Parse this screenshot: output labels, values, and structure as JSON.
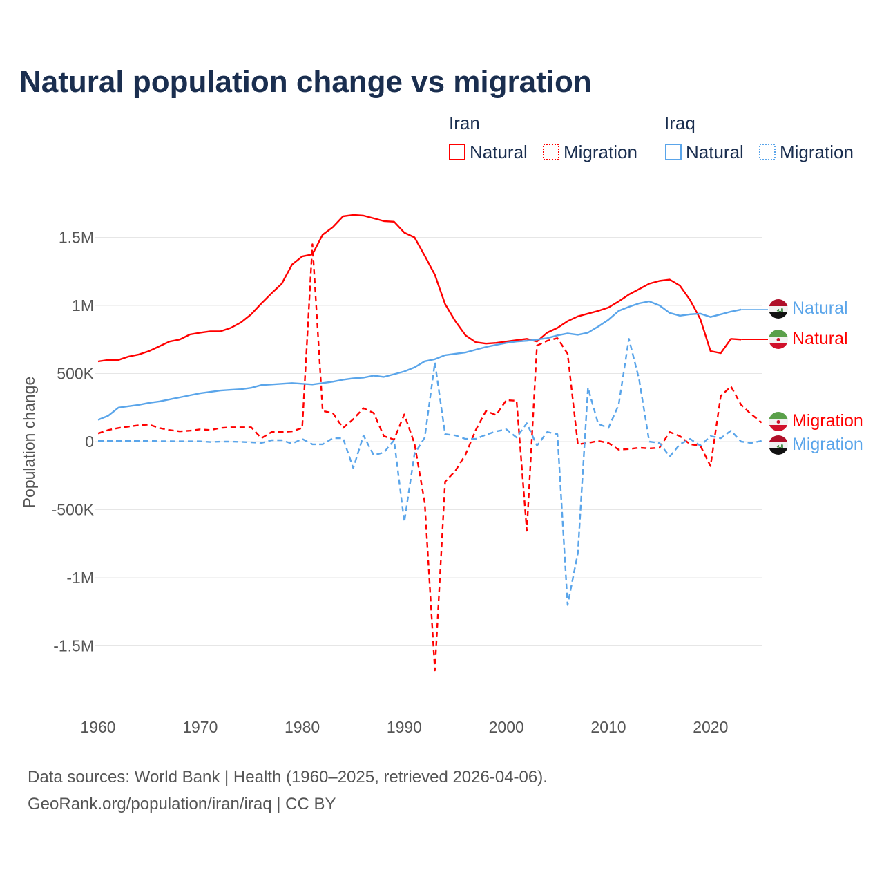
{
  "title": "Natural population change vs migration",
  "legend": {
    "groups": [
      {
        "name": "Iran",
        "items": [
          "Natural",
          "Migration"
        ]
      },
      {
        "name": "Iraq",
        "items": [
          "Natural",
          "Migration"
        ]
      }
    ]
  },
  "colors": {
    "iran": "#ff0000",
    "iraq": "#5aa5ea"
  },
  "source_line1": "Data sources: World Bank | Health (1960–2025, retrieved 2026-04-06).",
  "source_line2": "GeoRank.org/population/iran/iraq | CC BY",
  "chart_data": {
    "type": "line",
    "title": "Natural population change vs migration",
    "xlabel": "",
    "ylabel": "Population change",
    "xlim": [
      1960,
      2025
    ],
    "ylim": [
      -1700000,
      1700000
    ],
    "x_ticks": [
      1960,
      1970,
      1980,
      1990,
      2000,
      2010,
      2020
    ],
    "x_tick_labels": [
      "1960",
      "1970",
      "1980",
      "1990",
      "2000",
      "2010",
      "2020"
    ],
    "y_ticks": [
      1500000,
      1000000,
      500000,
      0,
      -500000,
      -1000000,
      -1500000
    ],
    "y_tick_labels": [
      "1.5M",
      "1M",
      "500K",
      "0",
      "-500K",
      "-1M",
      "-1.5M"
    ],
    "grid": true,
    "legend_position": "top-right",
    "start_year": 1960,
    "series": [
      {
        "name": "Iran Natural",
        "country": "Iran",
        "kind": "Natural",
        "style": "solid",
        "unit": "thousands",
        "values": [
          589,
          600,
          600,
          625,
          640,
          665,
          700,
          735,
          750,
          787,
          800,
          810,
          810,
          835,
          875,
          935,
          1015,
          1090,
          1160,
          1300,
          1360,
          1375,
          1520,
          1575,
          1655,
          1665,
          1660,
          1640,
          1620,
          1615,
          1535,
          1500,
          1365,
          1225,
          1010,
          885,
          780,
          730,
          720,
          725,
          735,
          745,
          755,
          735,
          800,
          835,
          885,
          920,
          940,
          960,
          985,
          1030,
          1080,
          1120,
          1160,
          1180,
          1190,
          1145,
          1040,
          900,
          665,
          650,
          755,
          750
        ]
      },
      {
        "name": "Iran Migration",
        "country": "Iran",
        "kind": "Migration",
        "style": "dashed",
        "unit": "thousands",
        "values": [
          60,
          85,
          100,
          110,
          120,
          125,
          100,
          85,
          75,
          80,
          90,
          85,
          100,
          105,
          105,
          105,
          25,
          70,
          70,
          75,
          100,
          1450,
          225,
          210,
          100,
          165,
          245,
          210,
          40,
          15,
          200,
          -15,
          -450,
          -1680,
          -295,
          -215,
          -95,
          85,
          225,
          195,
          305,
          300,
          -655,
          705,
          740,
          760,
          645,
          -20,
          -10,
          5,
          -10,
          -60,
          -55,
          -45,
          -50,
          -45,
          70,
          40,
          -20,
          -30,
          -180,
          335,
          405,
          270,
          200,
          140
        ]
      },
      {
        "name": "Iraq Natural",
        "country": "Iraq",
        "kind": "Natural",
        "style": "solid",
        "unit": "thousands",
        "values": [
          160,
          190,
          250,
          260,
          270,
          285,
          295,
          310,
          325,
          340,
          355,
          365,
          375,
          380,
          385,
          395,
          415,
          420,
          425,
          430,
          425,
          420,
          430,
          440,
          455,
          465,
          470,
          485,
          475,
          495,
          515,
          545,
          590,
          605,
          635,
          645,
          655,
          675,
          695,
          710,
          725,
          735,
          740,
          750,
          760,
          780,
          795,
          785,
          800,
          845,
          895,
          960,
          990,
          1015,
          1030,
          1000,
          945,
          925,
          935,
          940,
          915,
          935,
          955,
          970
        ]
      },
      {
        "name": "Iraq Migration",
        "country": "Iraq",
        "kind": "Migration",
        "style": "dashed",
        "unit": "thousands",
        "values": [
          5,
          5,
          5,
          5,
          5,
          5,
          3,
          3,
          2,
          2,
          2,
          -3,
          0,
          0,
          -2,
          -5,
          -10,
          10,
          10,
          -15,
          20,
          -20,
          -20,
          25,
          25,
          -195,
          45,
          -100,
          -80,
          10,
          -590,
          -90,
          30,
          580,
          55,
          45,
          20,
          20,
          50,
          75,
          90,
          30,
          135,
          -30,
          70,
          55,
          -1200,
          -820,
          395,
          130,
          100,
          270,
          755,
          460,
          0,
          -10,
          -110,
          -20,
          20,
          -30,
          40,
          25,
          80,
          0,
          -10,
          5
        ]
      }
    ],
    "end_labels": [
      {
        "series": "Iraq Natural",
        "text": "Natural",
        "flag": "iraq-flag"
      },
      {
        "series": "Iran Natural",
        "text": "Natural",
        "flag": "iran-flag"
      },
      {
        "series": "Iran Migration",
        "text": "Migration",
        "flag": "iran-flag"
      },
      {
        "series": "Iraq Migration",
        "text": "Migration",
        "flag": "iraq-flag"
      }
    ]
  }
}
